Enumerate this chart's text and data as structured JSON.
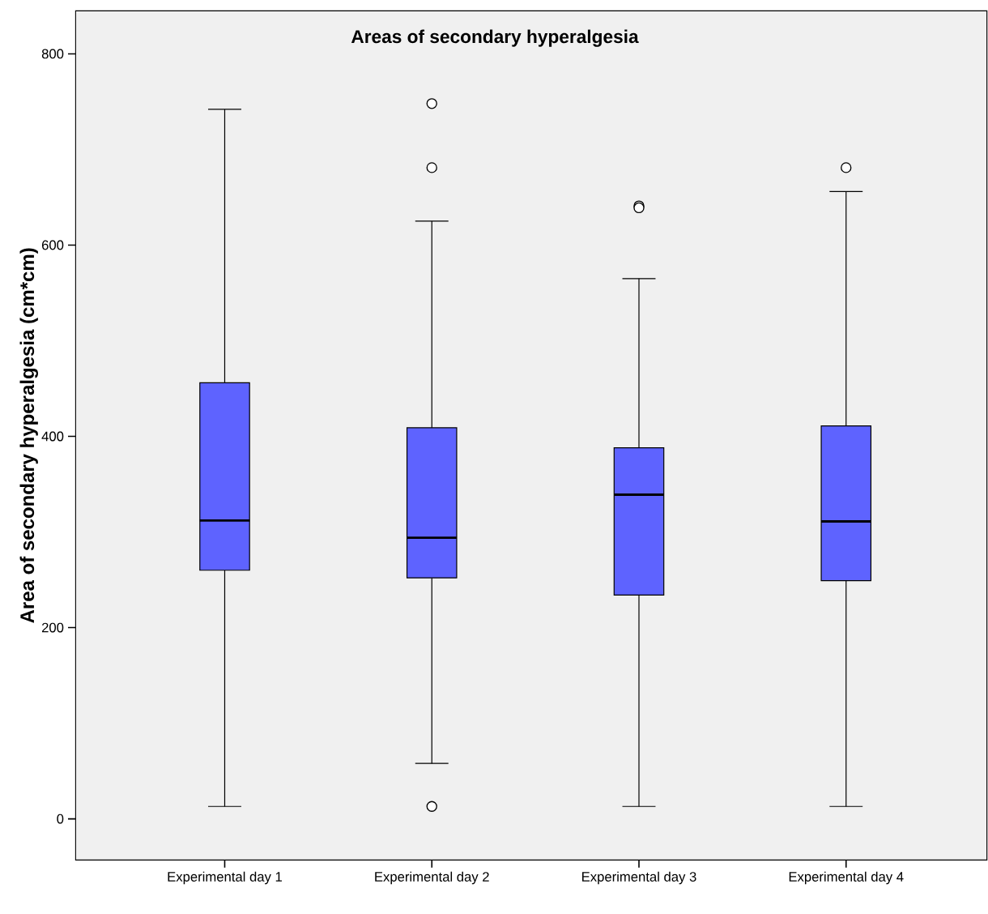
{
  "chart_data": {
    "type": "box",
    "title": "Areas of secondary hyperalgesia",
    "ylabel": "Area of secondary hyperalgesia (cm*cm)",
    "categories": [
      "Experimental day 1",
      "Experimental day 2",
      "Experimental day 3",
      "Experimental day 4"
    ],
    "color": "#5e63ff",
    "boxes": [
      {
        "low": 13,
        "q1": 260,
        "median": 312,
        "q3": 456,
        "high": 742
      },
      {
        "low": 58,
        "q1": 252,
        "median": 294,
        "q3": 409,
        "high": 625,
        "outliers": [
          748,
          681,
          13
        ]
      },
      {
        "low": 13,
        "q1": 234,
        "median": 339,
        "q3": 388,
        "high": 565,
        "outliers": [
          641,
          639
        ]
      },
      {
        "low": 13,
        "q1": 249,
        "median": 311,
        "q3": 411,
        "high": 656,
        "outliers": [
          681
        ]
      }
    ],
    "ylim": [
      -43,
      845
    ],
    "yticks": [
      0,
      200,
      400,
      600,
      800
    ]
  }
}
